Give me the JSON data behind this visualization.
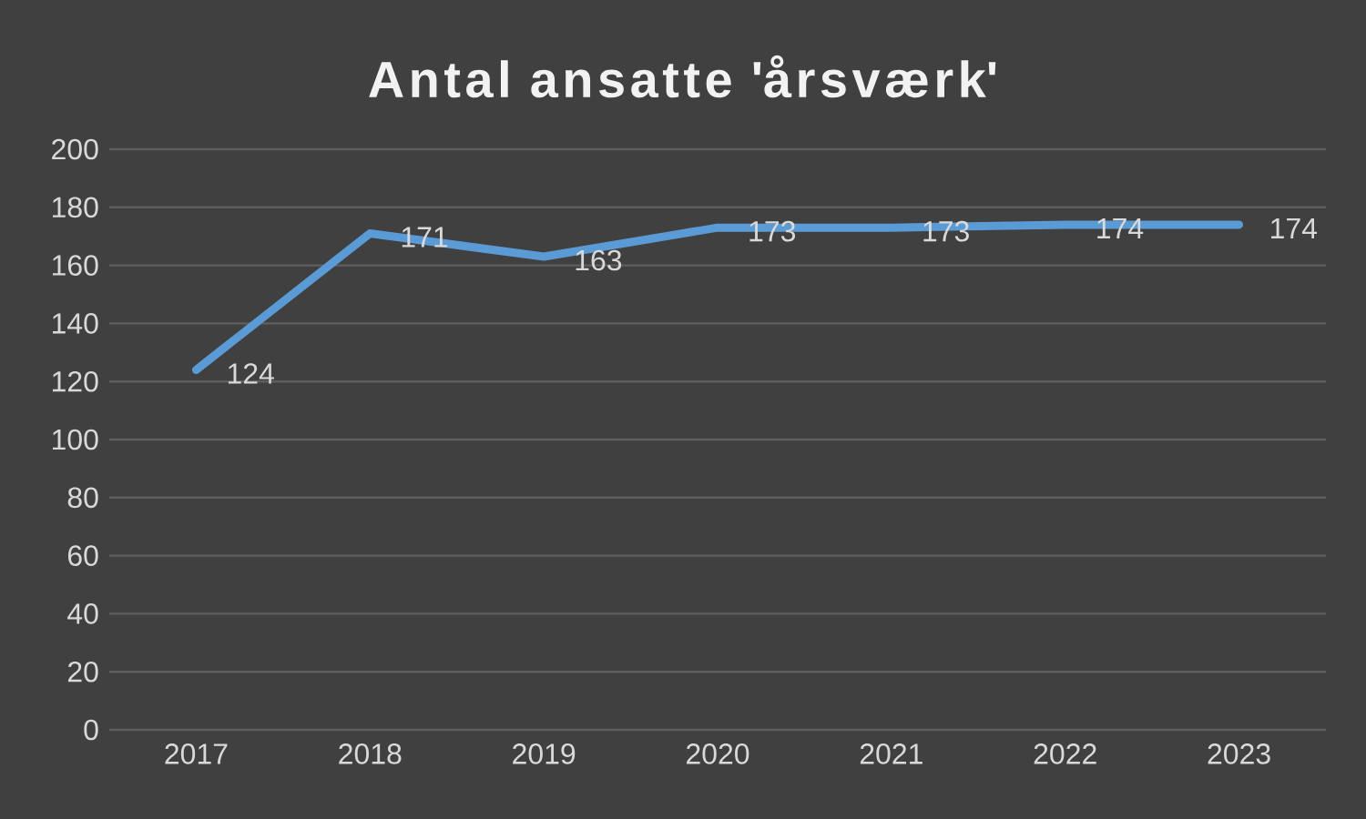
{
  "chart_data": {
    "type": "line",
    "title": "Antal ansatte 'årsværk'",
    "categories": [
      "2017",
      "2018",
      "2019",
      "2020",
      "2021",
      "2022",
      "2023"
    ],
    "values": [
      124,
      171,
      163,
      173,
      173,
      174,
      174
    ],
    "color": "#5b9bd5",
    "ylim": [
      0,
      200
    ],
    "yticks": [
      0,
      20,
      40,
      60,
      80,
      100,
      120,
      140,
      160,
      180,
      200
    ],
    "grid": "y",
    "data_labels": true
  }
}
